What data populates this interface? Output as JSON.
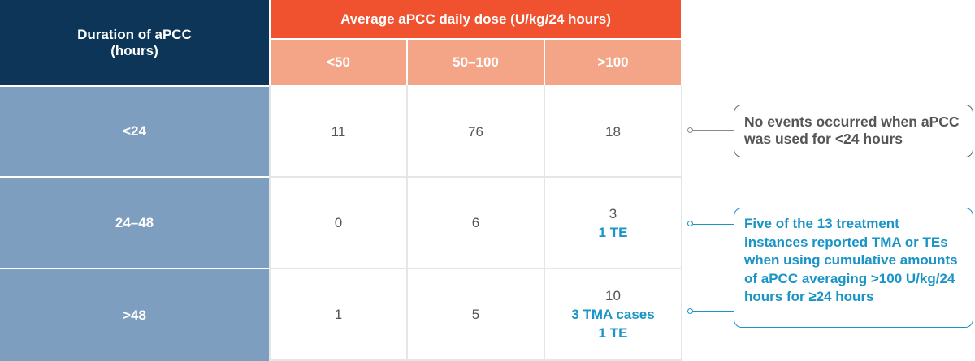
{
  "table": {
    "corner_header": "Duration of aPCC\n(hours)",
    "group_header": "Average aPCC daily dose (U/kg/24 hours)",
    "dose_columns": [
      "<50",
      "50–100",
      ">100"
    ],
    "rows": [
      {
        "duration": "<24",
        "cells": [
          {
            "value": "11",
            "events": []
          },
          {
            "value": "76",
            "events": []
          },
          {
            "value": "18",
            "events": []
          }
        ]
      },
      {
        "duration": "24–48",
        "cells": [
          {
            "value": "0",
            "events": []
          },
          {
            "value": "6",
            "events": []
          },
          {
            "value": "3",
            "events": [
              "1 TE"
            ]
          }
        ]
      },
      {
        "duration": ">48",
        "cells": [
          {
            "value": "1",
            "events": []
          },
          {
            "value": "5",
            "events": []
          },
          {
            "value": "10",
            "events": [
              "3 TMA cases",
              "1 TE"
            ]
          }
        ]
      }
    ]
  },
  "callouts": {
    "no_events": "No events occurred when aPCC was used for <24 hours",
    "tma_te": "Five of the 13 treatment instances reported TMA or TEs when using cumulative amounts of aPCC averaging >100 U/kg/24 hours for ≥24 hours"
  },
  "colors": {
    "navy": "#0d3558",
    "orange": "#f0522f",
    "salmon": "#f4a587",
    "row_header_blue": "#7e9ec0",
    "event_teal": "#1a94c6",
    "callout_gray": "#555555"
  }
}
